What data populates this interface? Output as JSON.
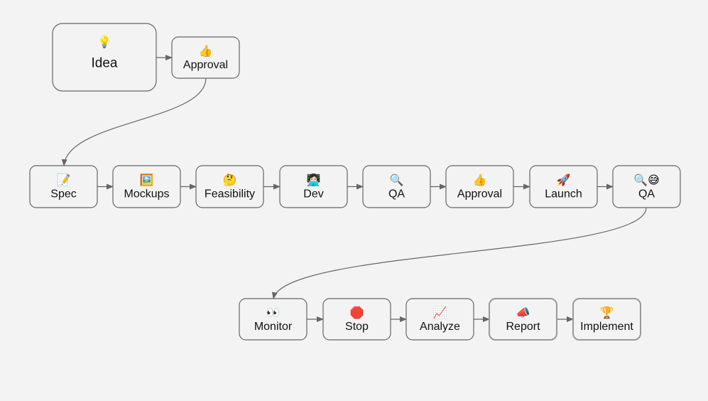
{
  "diagram": {
    "nodes": [
      {
        "id": "idea",
        "label": "Idea",
        "icon": "💡",
        "icon_name": "light-bulb-icon"
      },
      {
        "id": "approval1",
        "label": "Approval",
        "icon": "👍",
        "icon_name": "thumbs-up-icon"
      },
      {
        "id": "spec",
        "label": "Spec",
        "icon": "📝",
        "icon_name": "memo-icon"
      },
      {
        "id": "mockups",
        "label": "Mockups",
        "icon": "🖼️",
        "icon_name": "framed-picture-icon"
      },
      {
        "id": "feasibility",
        "label": "Feasibility",
        "icon": "🤔",
        "icon_name": "thinking-face-icon"
      },
      {
        "id": "dev",
        "label": "Dev",
        "icon": "👩🏻‍💻",
        "icon_name": "technologist-icon"
      },
      {
        "id": "qa1",
        "label": "QA",
        "icon": "🔍",
        "icon_name": "magnifying-glass-icon"
      },
      {
        "id": "approval2",
        "label": "Approval",
        "icon": "👍",
        "icon_name": "thumbs-up-icon"
      },
      {
        "id": "launch",
        "label": "Launch",
        "icon": "🚀",
        "icon_name": "rocket-icon"
      },
      {
        "id": "qa2",
        "label": "QA",
        "icon": "🔍😅",
        "icon_name": "magnifying-glass-sweat-smile-icon"
      },
      {
        "id": "monitor",
        "label": "Monitor",
        "icon": "👀",
        "icon_name": "eyes-icon"
      },
      {
        "id": "stop",
        "label": "Stop",
        "icon": "🛑",
        "icon_name": "stop-sign-icon"
      },
      {
        "id": "analyze",
        "label": "Analyze",
        "icon": "📈",
        "icon_name": "chart-increasing-icon"
      },
      {
        "id": "report",
        "label": "Report",
        "icon": "📣",
        "icon_name": "megaphone-icon"
      },
      {
        "id": "implement",
        "label": "Implement",
        "icon": "🏆",
        "icon_name": "trophy-icon"
      }
    ],
    "edges": [
      [
        "idea",
        "approval1"
      ],
      [
        "approval1",
        "spec"
      ],
      [
        "spec",
        "mockups"
      ],
      [
        "mockups",
        "feasibility"
      ],
      [
        "feasibility",
        "dev"
      ],
      [
        "dev",
        "qa1"
      ],
      [
        "qa1",
        "approval2"
      ],
      [
        "approval2",
        "launch"
      ],
      [
        "launch",
        "qa2"
      ],
      [
        "qa2",
        "monitor"
      ],
      [
        "monitor",
        "stop"
      ],
      [
        "stop",
        "analyze"
      ],
      [
        "analyze",
        "report"
      ],
      [
        "report",
        "implement"
      ]
    ],
    "colors": {
      "background": "#f3f3f3",
      "stroke": "#666666",
      "soft_stroke": "#999999"
    }
  }
}
